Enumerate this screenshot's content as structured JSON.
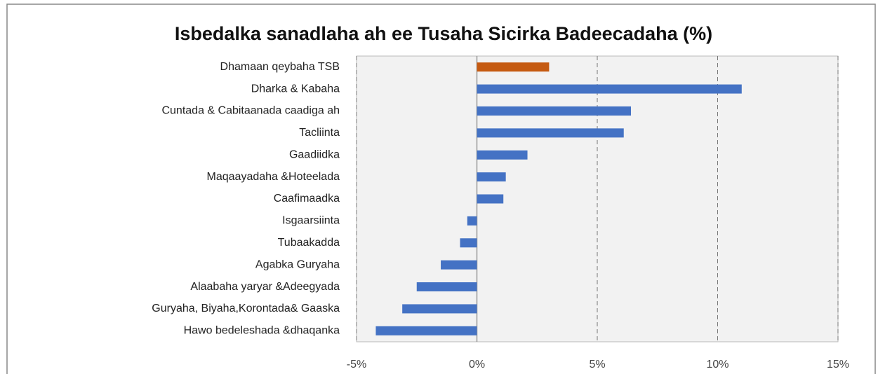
{
  "chart_data": {
    "type": "bar",
    "orientation": "horizontal",
    "title": "Isbedalka sanadlaha ah ee Tusaha Sicirka Badeecadaha (%)",
    "categories": [
      "Dhamaan qeybaha  TSB",
      "Dharka & Kabaha",
      "Cuntada & Cabitaanada caadiga ah",
      "Tacliinta",
      "Gaadiidka",
      "Maqaayadaha &Hoteelada",
      "Caafimaadka",
      "Isgaarsiinta",
      "Tubaakadda",
      "Agabka Guryaha ",
      "Alaabaha yaryar &Adeegyada",
      "Guryaha, Biyaha,Korontada& Gaaska",
      "Hawo bedeleshada &dhaqanka"
    ],
    "values": [
      3.0,
      11.0,
      6.4,
      6.1,
      2.1,
      1.2,
      1.1,
      -0.4,
      -0.7,
      -1.5,
      -2.5,
      -3.1,
      -4.2
    ],
    "colors": [
      "#c55a11",
      "#4472c4",
      "#4472c4",
      "#4472c4",
      "#4472c4",
      "#4472c4",
      "#4472c4",
      "#4472c4",
      "#4472c4",
      "#4472c4",
      "#4472c4",
      "#4472c4",
      "#4472c4"
    ],
    "xlim": [
      -5,
      15
    ],
    "xticks": [
      {
        "value": -5,
        "label": "-5%"
      },
      {
        "value": 0,
        "label": "0%"
      },
      {
        "value": 5,
        "label": "5%"
      },
      {
        "value": 10,
        "label": "10%"
      },
      {
        "value": 15,
        "label": "15%"
      }
    ],
    "grid": true
  }
}
